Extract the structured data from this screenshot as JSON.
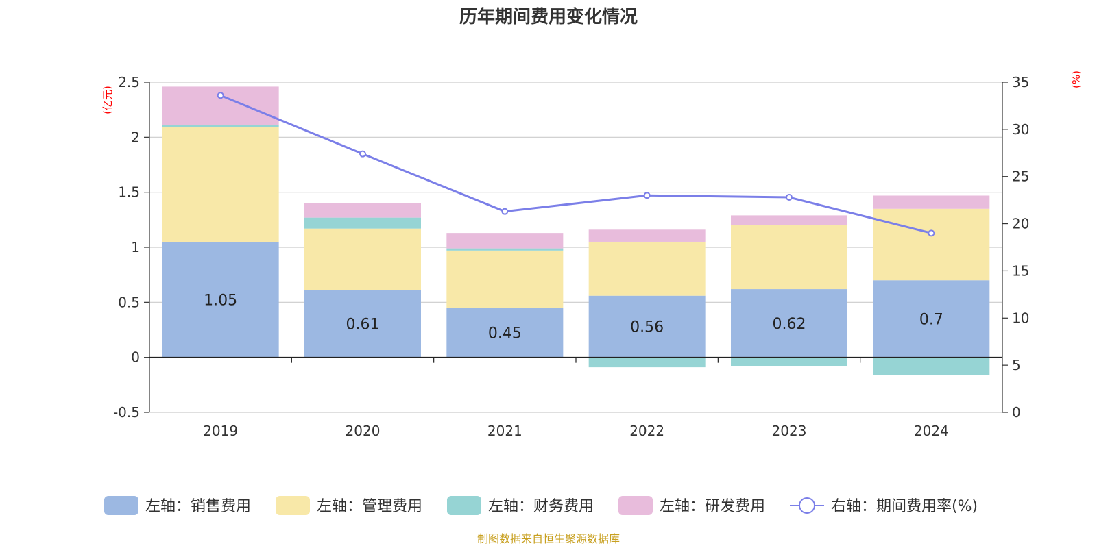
{
  "chart_data": {
    "type": "bar",
    "title": "历年期间费用变化情况",
    "categories": [
      "2019",
      "2020",
      "2021",
      "2022",
      "2023",
      "2024"
    ],
    "series": [
      {
        "name": "左轴：销售费用",
        "axis": "left",
        "color": "#9cb8e2",
        "values": [
          1.05,
          0.61,
          0.45,
          0.56,
          0.62,
          0.7
        ]
      },
      {
        "name": "左轴：管理费用",
        "axis": "left",
        "color": "#f8e8a8",
        "values": [
          1.04,
          0.56,
          0.52,
          0.49,
          0.58,
          0.65
        ]
      },
      {
        "name": "左轴：财务费用",
        "axis": "left",
        "color": "#96d4d4",
        "values": [
          0.02,
          0.1,
          0.02,
          -0.09,
          -0.08,
          -0.16
        ]
      },
      {
        "name": "左轴：研发费用",
        "axis": "left",
        "color": "#e8bcdc",
        "values": [
          0.35,
          0.13,
          0.14,
          0.11,
          0.09,
          0.12
        ]
      },
      {
        "name": "右轴：期间费用率(%)",
        "axis": "right",
        "type": "line",
        "color": "#7b7fe8",
        "values": [
          33.6,
          27.4,
          21.3,
          23.0,
          22.8,
          19.0
        ]
      }
    ],
    "data_labels": [
      "1.05",
      "0.61",
      "0.45",
      "0.56",
      "0.62",
      "0.7"
    ],
    "left_axis": {
      "unit": "(亿元)",
      "min": -0.5,
      "max": 2.5,
      "ticks": [
        -0.5,
        0,
        0.5,
        1,
        1.5,
        2,
        2.5
      ],
      "tick_labels": [
        "-0.5",
        "0",
        "0.5",
        "1",
        "1.5",
        "2",
        "2.5"
      ]
    },
    "right_axis": {
      "unit": "(%)",
      "min": 0,
      "max": 35,
      "ticks": [
        0,
        5,
        10,
        15,
        20,
        25,
        30,
        35
      ],
      "tick_labels": [
        "0",
        "5",
        "10",
        "15",
        "20",
        "25",
        "30",
        "35"
      ]
    },
    "grid": true,
    "legend_position": "bottom"
  },
  "source": "制图数据来自恒生聚源数据库"
}
